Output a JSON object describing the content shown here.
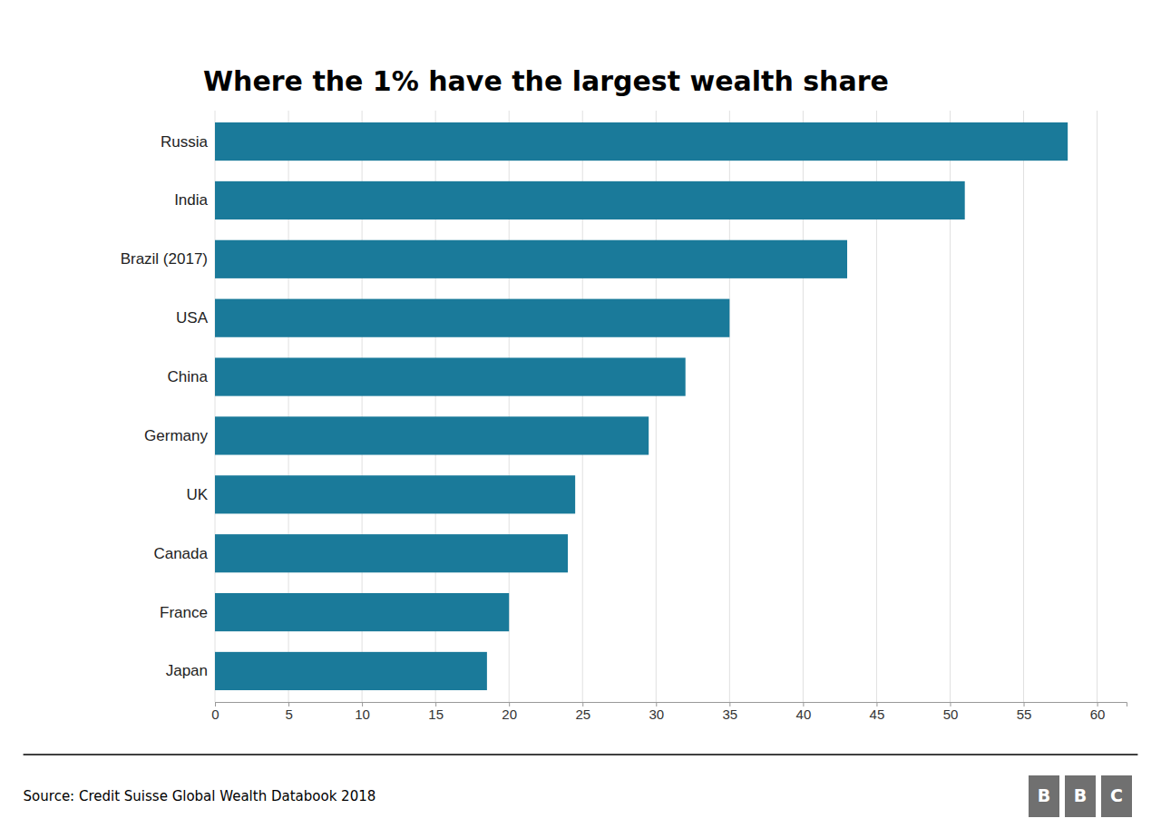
{
  "chart_data": {
    "type": "bar",
    "orientation": "horizontal",
    "title": "Where the 1% have the largest wealth share",
    "categories": [
      "Russia",
      "India",
      "Brazil (2017)",
      "USA",
      "China",
      "Germany",
      "UK",
      "Canada",
      "France",
      "Japan"
    ],
    "values": [
      58.0,
      51.0,
      43.0,
      35.0,
      32.0,
      29.5,
      24.5,
      24.0,
      20.0,
      18.5
    ],
    "color": "#1a7a9a",
    "xlim": [
      0,
      62
    ],
    "xticks": [
      0,
      5,
      10,
      15,
      20,
      25,
      30,
      35,
      40,
      45,
      50,
      55,
      60
    ],
    "grid": true,
    "annotations": [
      "Source: Credit Suisse Global Wealth Databook 2018",
      "BBC"
    ]
  }
}
